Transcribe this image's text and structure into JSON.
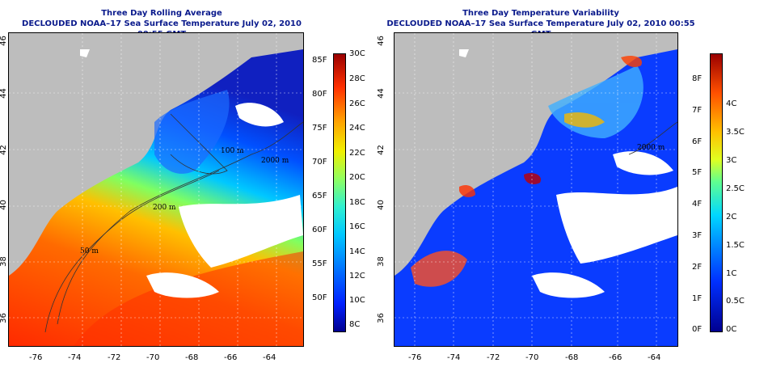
{
  "left": {
    "title_line1": "Three Day Rolling Average",
    "title_line2": "DECLOUDED NOAA–17 Sea Surface Temperature July 02, 2010 00:55 GMT",
    "contours": [
      "2000 m",
      "100 m",
      "200 m",
      "50 m"
    ],
    "colorbar_F": [
      "85F",
      "80F",
      "75F",
      "70F",
      "65F",
      "60F",
      "55F",
      "50F"
    ],
    "colorbar_C": [
      "30C",
      "28C",
      "26C",
      "24C",
      "22C",
      "20C",
      "18C",
      "16C",
      "14C",
      "12C",
      "10C",
      "8C"
    ]
  },
  "right": {
    "title_line1": "Three Day Temperature Variability",
    "title_line2": "DECLOUDED NOAA–17 Sea Surface Temperature July 02, 2010 00:55 GMT",
    "contours": [
      "2000 m"
    ],
    "colorbar_F": [
      "8F",
      "7F",
      "6F",
      "5F",
      "4F",
      "3F",
      "2F",
      "1F",
      "0F"
    ],
    "colorbar_C": [
      "4C",
      "3.5C",
      "3C",
      "2.5C",
      "2C",
      "1.5C",
      "1C",
      "0.5C",
      "0C"
    ]
  },
  "x_ticks": [
    "-76",
    "-74",
    "-72",
    "-70",
    "-68",
    "-66",
    "-64"
  ],
  "y_ticks": [
    "46",
    "44",
    "42",
    "40",
    "38",
    "36"
  ],
  "colors": {
    "title": "#0a1a8c",
    "land": "#bdbdbd",
    "clouds": "#ffffff"
  }
}
